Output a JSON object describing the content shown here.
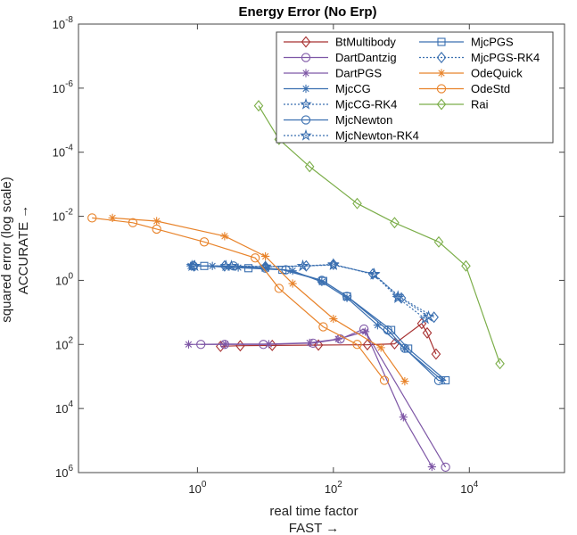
{
  "chart_data": {
    "type": "line",
    "title": "Energy Error (No Erp)",
    "xlabel": "real time factor",
    "xlabel2": "FAST →",
    "ylabel": "squared error (log scale)",
    "ylabel2": "ACCURATE →",
    "xscale": "log",
    "yscale": "log",
    "yreversed": true,
    "xlim_log10": [
      -1.75,
      5.4
    ],
    "ylim_log10": [
      -8,
      6
    ],
    "xticks": [
      {
        "base": "10",
        "exp": "0",
        "log": 0
      },
      {
        "base": "10",
        "exp": "2",
        "log": 2
      },
      {
        "base": "10",
        "exp": "4",
        "log": 4
      }
    ],
    "yticks": [
      {
        "base": "10",
        "exp": "-8",
        "log": -8
      },
      {
        "base": "10",
        "exp": "-6",
        "log": -6
      },
      {
        "base": "10",
        "exp": "-4",
        "log": -4
      },
      {
        "base": "10",
        "exp": "-2",
        "log": -2
      },
      {
        "base": "10",
        "exp": "0",
        "log": 0
      },
      {
        "base": "10",
        "exp": "2",
        "log": 2
      },
      {
        "base": "10",
        "exp": "4",
        "log": 4
      },
      {
        "base": "10",
        "exp": "6",
        "log": 6
      }
    ],
    "grid": false,
    "legend_position": "top-right",
    "series": [
      {
        "name": "BtMultibody",
        "color": "#a83232",
        "marker": "diamond",
        "dash": false,
        "points": [
          [
            0.34,
            2.06
          ],
          [
            0.63,
            2.04
          ],
          [
            1.1,
            2.03
          ],
          [
            1.78,
            2.02
          ],
          [
            2.5,
            2.01
          ],
          [
            2.9,
            1.98
          ],
          [
            3.3,
            1.35
          ],
          [
            3.38,
            1.64
          ],
          [
            3.51,
            2.3
          ]
        ]
      },
      {
        "name": "DartDantzig",
        "color": "#7e57a6",
        "marker": "circle",
        "dash": false,
        "points": [
          [
            0.05,
            2.0
          ],
          [
            0.4,
            2.0
          ],
          [
            0.97,
            2.0
          ],
          [
            1.7,
            1.96
          ],
          [
            2.1,
            1.83
          ],
          [
            2.45,
            1.52
          ],
          [
            3.65,
            5.83
          ]
        ]
      },
      {
        "name": "DartPGS",
        "color": "#7e57a6",
        "marker": "asterisk",
        "dash": false,
        "points": [
          [
            -0.13,
            2.0
          ],
          [
            0.41,
            1.99
          ],
          [
            1.05,
            1.99
          ],
          [
            1.65,
            1.95
          ],
          [
            2.07,
            1.83
          ],
          [
            2.47,
            1.6
          ],
          [
            3.03,
            4.27
          ],
          [
            3.45,
            5.82
          ]
        ]
      },
      {
        "name": "MjcCG",
        "color": "#3a6fb0",
        "marker": "asterisk",
        "dash": false,
        "points": [
          [
            -0.1,
            -0.45
          ],
          [
            0.22,
            -0.45
          ],
          [
            0.6,
            -0.4
          ],
          [
            1.0,
            -0.38
          ],
          [
            1.4,
            -0.3
          ],
          [
            1.83,
            0.05
          ],
          [
            2.2,
            0.55
          ],
          [
            2.65,
            1.4
          ],
          [
            3.05,
            2.13
          ],
          [
            3.6,
            3.12
          ]
        ]
      },
      {
        "name": "MjcCG-RK4",
        "color": "#3a6fb0",
        "marker": "star",
        "dash": true,
        "points": [
          [
            -0.04,
            -0.45
          ],
          [
            0.42,
            -0.45
          ],
          [
            1.0,
            -0.43
          ],
          [
            1.55,
            -0.45
          ],
          [
            2.0,
            -0.5
          ],
          [
            2.6,
            -0.18
          ],
          [
            2.95,
            0.55
          ],
          [
            3.35,
            1.2
          ]
        ]
      },
      {
        "name": "MjcNewton",
        "color": "#3a6fb0",
        "marker": "circle",
        "dash": false,
        "points": [
          [
            -0.06,
            -0.45
          ],
          [
            0.53,
            -0.45
          ],
          [
            1.0,
            -0.38
          ],
          [
            1.3,
            -0.33
          ],
          [
            1.83,
            0.0
          ],
          [
            2.2,
            0.5
          ],
          [
            2.8,
            1.55
          ],
          [
            3.05,
            2.12
          ],
          [
            3.55,
            3.13
          ]
        ]
      },
      {
        "name": "MjcNewton-RK4",
        "color": "#3a6fb0",
        "marker": "star-outline",
        "dash": true,
        "points": [
          [
            -0.08,
            -0.45
          ],
          [
            0.5,
            -0.45
          ],
          [
            1.0,
            -0.42
          ],
          [
            1.55,
            -0.45
          ],
          [
            2.0,
            -0.48
          ],
          [
            2.6,
            -0.2
          ],
          [
            2.95,
            0.5
          ],
          [
            3.4,
            1.13
          ]
        ]
      },
      {
        "name": "MjcPGS",
        "color": "#3a6fb0",
        "marker": "square",
        "dash": false,
        "points": [
          [
            0.1,
            -0.45
          ],
          [
            0.75,
            -0.38
          ],
          [
            1.25,
            -0.33
          ],
          [
            1.85,
            0.02
          ],
          [
            2.2,
            0.5
          ],
          [
            2.85,
            1.55
          ],
          [
            3.1,
            2.13
          ],
          [
            3.65,
            3.12
          ]
        ]
      },
      {
        "name": "MjcPGS-RK4",
        "color": "#3a6fb0",
        "marker": "diamond",
        "dash": true,
        "points": [
          [
            -0.05,
            -0.45
          ],
          [
            0.4,
            -0.45
          ],
          [
            1.0,
            -0.43
          ],
          [
            1.6,
            -0.45
          ],
          [
            2.0,
            -0.5
          ],
          [
            2.58,
            -0.2
          ],
          [
            3.0,
            0.55
          ],
          [
            3.48,
            1.15
          ]
        ]
      },
      {
        "name": "OdeQuick",
        "color": "#e8832a",
        "marker": "asterisk",
        "dash": false,
        "points": [
          [
            -1.25,
            -1.95
          ],
          [
            -0.6,
            -1.85
          ],
          [
            0.4,
            -1.38
          ],
          [
            1.0,
            -0.75
          ],
          [
            1.4,
            0.1
          ],
          [
            2.0,
            1.2
          ],
          [
            2.7,
            2.1
          ],
          [
            3.05,
            3.15
          ]
        ]
      },
      {
        "name": "OdeStd",
        "color": "#e8832a",
        "marker": "circle",
        "dash": false,
        "points": [
          [
            -1.55,
            -1.95
          ],
          [
            -0.95,
            -1.8
          ],
          [
            -0.6,
            -1.6
          ],
          [
            0.1,
            -1.2
          ],
          [
            0.85,
            -0.7
          ],
          [
            1.2,
            0.25
          ],
          [
            1.85,
            1.45
          ],
          [
            2.35,
            2.0
          ],
          [
            2.75,
            3.12
          ]
        ]
      },
      {
        "name": "Rai",
        "color": "#7cae4a",
        "marker": "diamond",
        "dash": false,
        "points": [
          [
            0.9,
            -5.45
          ],
          [
            1.2,
            -4.4
          ],
          [
            1.65,
            -3.55
          ],
          [
            2.35,
            -2.4
          ],
          [
            2.9,
            -1.8
          ],
          [
            3.55,
            -1.2
          ],
          [
            3.95,
            -0.45
          ],
          [
            4.45,
            2.6
          ]
        ]
      }
    ]
  }
}
